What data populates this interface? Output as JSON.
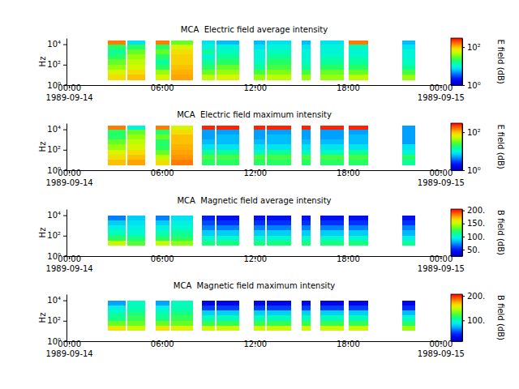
{
  "chart_data": [
    {
      "type": "heatmap",
      "title": "MCA  Electric field average intensity",
      "y_label": "Hz",
      "log": "y",
      "xlim": [
        "1989-09-13T23:50",
        "1989-09-15T00:05"
      ],
      "xticks": [
        {
          "value": "1989-09-14T00:00",
          "label": "00:00\n1989-09-14"
        },
        {
          "value": "1989-09-14T06:00",
          "label": "06:00"
        },
        {
          "value": "1989-09-14T12:00",
          "label": "12:00"
        },
        {
          "value": "1989-09-14T18:00",
          "label": "18:00"
        },
        {
          "value": "1989-09-15T00:00",
          "label": "00:00\n1989-09-15"
        }
      ],
      "ylim": [
        1,
        40000
      ],
      "yticks": [
        {
          "value": 1,
          "label": "10⁰"
        },
        {
          "value": 100,
          "label": "10²"
        },
        {
          "value": 10000,
          "label": "10⁴"
        }
      ],
      "y_bins": [
        3.16,
        10,
        31.6,
        100,
        316,
        1000,
        3160,
        10000,
        25000
      ],
      "colorbar": {
        "label": "E field (dB)",
        "log": true,
        "range": [
          1,
          300
        ],
        "ticks": [
          {
            "value": 1,
            "label": "10⁰"
          },
          {
            "value": 100,
            "label": "10²"
          }
        ]
      },
      "segments": [
        {
          "start": "1989-09-14T02:30",
          "end": "1989-09-14T03:40",
          "values": [
            80,
            60,
            40,
            30,
            20,
            15,
            20,
            150
          ]
        },
        {
          "start": "1989-09-14T03:45",
          "end": "1989-09-14T04:55",
          "values": [
            100,
            80,
            60,
            50,
            40,
            30,
            20,
            8
          ]
        },
        {
          "start": "1989-09-14T05:35",
          "end": "1989-09-14T06:30",
          "values": [
            60,
            40,
            20,
            15,
            20,
            30,
            20,
            150
          ]
        },
        {
          "start": "1989-09-14T06:35",
          "end": "1989-09-14T08:00",
          "values": [
            120,
            110,
            100,
            90,
            90,
            80,
            60,
            30
          ]
        },
        {
          "start": "1989-09-14T08:35",
          "end": "1989-09-14T09:25",
          "values": [
            50,
            30,
            20,
            15,
            10,
            15,
            10,
            8
          ]
        },
        {
          "start": "1989-09-14T09:30",
          "end": "1989-09-14T11:00",
          "values": [
            60,
            40,
            30,
            20,
            15,
            12,
            10,
            6
          ]
        },
        {
          "start": "1989-09-14T11:55",
          "end": "1989-09-14T12:40",
          "values": [
            40,
            25,
            15,
            12,
            10,
            10,
            8,
            6
          ]
        },
        {
          "start": "1989-09-14T12:45",
          "end": "1989-09-14T14:20",
          "values": [
            50,
            35,
            25,
            20,
            15,
            12,
            10,
            8
          ]
        },
        {
          "start": "1989-09-14T15:00",
          "end": "1989-09-14T15:35",
          "values": [
            40,
            25,
            15,
            12,
            10,
            10,
            8,
            6
          ]
        },
        {
          "start": "1989-09-14T16:15",
          "end": "1989-09-14T17:45",
          "values": [
            40,
            30,
            20,
            15,
            12,
            10,
            10,
            8
          ]
        },
        {
          "start": "1989-09-14T18:05",
          "end": "1989-09-14T19:20",
          "values": [
            50,
            30,
            20,
            15,
            12,
            10,
            12,
            150
          ]
        },
        {
          "start": "1989-09-14T21:30",
          "end": "1989-09-14T22:20",
          "values": [
            40,
            25,
            15,
            12,
            10,
            10,
            8,
            6
          ]
        }
      ]
    },
    {
      "type": "heatmap",
      "title": "MCA  Electric field maximum intensity",
      "y_label": "Hz",
      "log": "y",
      "xlim": [
        "1989-09-13T23:50",
        "1989-09-15T00:05"
      ],
      "xticks": [
        {
          "value": "1989-09-14T00:00",
          "label": "00:00\n1989-09-14"
        },
        {
          "value": "1989-09-14T06:00",
          "label": "06:00"
        },
        {
          "value": "1989-09-14T12:00",
          "label": "12:00"
        },
        {
          "value": "1989-09-14T18:00",
          "label": "18:00"
        },
        {
          "value": "1989-09-15T00:00",
          "label": "00:00\n1989-09-15"
        }
      ],
      "ylim": [
        1,
        40000
      ],
      "yticks": [
        {
          "value": 1,
          "label": "10⁰"
        },
        {
          "value": 100,
          "label": "10²"
        },
        {
          "value": 10000,
          "label": "10⁴"
        }
      ],
      "y_bins": [
        3.16,
        10,
        31.6,
        100,
        316,
        1000,
        3160,
        10000,
        25000
      ],
      "colorbar": {
        "label": "E field (dB)",
        "log": true,
        "range": [
          1,
          300
        ],
        "ticks": [
          {
            "value": 1,
            "label": "10⁰"
          },
          {
            "value": 100,
            "label": "10²"
          }
        ]
      },
      "segments": [
        {
          "start": "1989-09-14T02:30",
          "end": "1989-09-14T03:40",
          "values": [
            100,
            80,
            60,
            40,
            30,
            20,
            20,
            150
          ]
        },
        {
          "start": "1989-09-14T03:45",
          "end": "1989-09-14T04:55",
          "values": [
            120,
            100,
            80,
            60,
            50,
            40,
            30,
            10
          ]
        },
        {
          "start": "1989-09-14T05:35",
          "end": "1989-09-14T06:30",
          "values": [
            80,
            50,
            30,
            20,
            20,
            30,
            20,
            150
          ]
        },
        {
          "start": "1989-09-14T06:35",
          "end": "1989-09-14T08:00",
          "values": [
            150,
            130,
            120,
            110,
            100,
            100,
            80,
            60
          ]
        },
        {
          "start": "1989-09-14T08:35",
          "end": "1989-09-14T09:25",
          "values": [
            20,
            25,
            15,
            8,
            6,
            5,
            5,
            250
          ]
        },
        {
          "start": "1989-09-14T09:30",
          "end": "1989-09-14T11:00",
          "values": [
            20,
            25,
            15,
            8,
            6,
            6,
            5,
            250
          ]
        },
        {
          "start": "1989-09-14T11:55",
          "end": "1989-09-14T12:40",
          "values": [
            20,
            25,
            12,
            8,
            6,
            5,
            5,
            250
          ]
        },
        {
          "start": "1989-09-14T12:45",
          "end": "1989-09-14T14:20",
          "values": [
            20,
            25,
            15,
            8,
            6,
            6,
            5,
            250
          ]
        },
        {
          "start": "1989-09-14T15:00",
          "end": "1989-09-14T15:35",
          "values": [
            20,
            25,
            12,
            8,
            6,
            5,
            5,
            250
          ]
        },
        {
          "start": "1989-09-14T16:15",
          "end": "1989-09-14T17:45",
          "values": [
            20,
            25,
            12,
            8,
            6,
            5,
            5,
            250
          ]
        },
        {
          "start": "1989-09-14T18:05",
          "end": "1989-09-14T19:20",
          "values": [
            20,
            25,
            15,
            8,
            6,
            6,
            5,
            250
          ]
        },
        {
          "start": "1989-09-14T21:30",
          "end": "1989-09-14T22:20",
          "values": [
            15,
            20,
            10,
            8,
            5,
            5,
            5,
            5
          ]
        }
      ]
    },
    {
      "type": "heatmap",
      "title": "MCA  Magnetic field average intensity",
      "y_label": "Hz",
      "log": "y",
      "xlim": [
        "1989-09-13T23:50",
        "1989-09-15T00:05"
      ],
      "xticks": [
        {
          "value": "1989-09-14T00:00",
          "label": "00:00\n1989-09-14"
        },
        {
          "value": "1989-09-14T06:00",
          "label": "06:00"
        },
        {
          "value": "1989-09-14T12:00",
          "label": "12:00"
        },
        {
          "value": "1989-09-14T18:00",
          "label": "18:00"
        },
        {
          "value": "1989-09-15T00:00",
          "label": "00:00\n1989-09-15"
        }
      ],
      "ylim": [
        1,
        40000
      ],
      "yticks": [
        {
          "value": 1,
          "label": "10⁰"
        },
        {
          "value": 100,
          "label": "10²"
        },
        {
          "value": 10000,
          "label": "10⁴"
        }
      ],
      "y_bins": [
        10,
        31.6,
        100,
        316,
        1000,
        3160,
        10000
      ],
      "colorbar": {
        "label": "B field (dB)",
        "log": false,
        "range": [
          25,
          205
        ],
        "ticks": [
          {
            "value": 50,
            "label": "50."
          },
          {
            "value": 100,
            "label": "100."
          },
          {
            "value": 150,
            "label": "150."
          },
          {
            "value": 200,
            "label": "200."
          }
        ]
      },
      "segments": [
        {
          "start": "1989-09-14T02:30",
          "end": "1989-09-14T03:40",
          "values": [
            150,
            120,
            105,
            95,
            85,
            70
          ]
        },
        {
          "start": "1989-09-14T03:45",
          "end": "1989-09-14T04:55",
          "values": [
            130,
            115,
            100,
            95,
            90,
            85
          ]
        },
        {
          "start": "1989-09-14T05:35",
          "end": "1989-09-14T06:30",
          "values": [
            150,
            120,
            105,
            95,
            85,
            70
          ]
        },
        {
          "start": "1989-09-14T06:35",
          "end": "1989-09-14T08:00",
          "values": [
            140,
            120,
            110,
            100,
            95,
            90
          ]
        },
        {
          "start": "1989-09-14T08:35",
          "end": "1989-09-14T09:25",
          "values": [
            115,
            100,
            85,
            70,
            60,
            50
          ]
        },
        {
          "start": "1989-09-14T09:30",
          "end": "1989-09-14T11:00",
          "values": [
            115,
            100,
            85,
            70,
            55,
            45
          ]
        },
        {
          "start": "1989-09-14T11:55",
          "end": "1989-09-14T12:40",
          "values": [
            115,
            100,
            85,
            70,
            55,
            45
          ]
        },
        {
          "start": "1989-09-14T12:45",
          "end": "1989-09-14T14:20",
          "values": [
            115,
            100,
            85,
            70,
            55,
            45
          ]
        },
        {
          "start": "1989-09-14T15:00",
          "end": "1989-09-14T15:35",
          "values": [
            115,
            100,
            85,
            70,
            55,
            45
          ]
        },
        {
          "start": "1989-09-14T16:15",
          "end": "1989-09-14T17:45",
          "values": [
            115,
            100,
            85,
            70,
            55,
            45
          ]
        },
        {
          "start": "1989-09-14T18:05",
          "end": "1989-09-14T19:20",
          "values": [
            115,
            100,
            85,
            70,
            55,
            45
          ]
        },
        {
          "start": "1989-09-14T21:30",
          "end": "1989-09-14T22:20",
          "values": [
            110,
            95,
            80,
            70,
            55,
            45
          ]
        }
      ]
    },
    {
      "type": "heatmap",
      "title": "MCA  Magnetic field maximum intensity",
      "y_label": "Hz",
      "log": "y",
      "xlim": [
        "1989-09-13T23:50",
        "1989-09-15T00:05"
      ],
      "xticks": [
        {
          "value": "1989-09-14T00:00",
          "label": "00:00\n1989-09-14"
        },
        {
          "value": "1989-09-14T06:00",
          "label": "06:00"
        },
        {
          "value": "1989-09-14T12:00",
          "label": "12:00"
        },
        {
          "value": "1989-09-14T18:00",
          "label": "18:00"
        },
        {
          "value": "1989-09-15T00:00",
          "label": "00:00\n1989-09-15"
        }
      ],
      "ylim": [
        1,
        40000
      ],
      "yticks": [
        {
          "value": 1,
          "label": "10⁰"
        },
        {
          "value": 100,
          "label": "10²"
        },
        {
          "value": 10000,
          "label": "10⁴"
        }
      ],
      "y_bins": [
        10,
        31.6,
        100,
        316,
        1000,
        3160,
        10000
      ],
      "colorbar": {
        "label": "B field (dB)",
        "log": false,
        "range": [
          15,
          207
        ],
        "ticks": [
          {
            "value": 100,
            "label": "100."
          },
          {
            "value": 200,
            "label": "200."
          }
        ]
      },
      "segments": [
        {
          "start": "1989-09-14T02:30",
          "end": "1989-09-14T03:40",
          "values": [
            160,
            130,
            110,
            100,
            90,
            70
          ]
        },
        {
          "start": "1989-09-14T03:45",
          "end": "1989-09-14T04:55",
          "values": [
            150,
            130,
            120,
            110,
            100,
            100
          ]
        },
        {
          "start": "1989-09-14T05:35",
          "end": "1989-09-14T06:30",
          "values": [
            160,
            130,
            110,
            100,
            90,
            70
          ]
        },
        {
          "start": "1989-09-14T06:35",
          "end": "1989-09-14T08:00",
          "values": [
            155,
            130,
            120,
            110,
            100,
            100
          ]
        },
        {
          "start": "1989-09-14T08:35",
          "end": "1989-09-14T09:25",
          "values": [
            150,
            120,
            100,
            80,
            50,
            30
          ]
        },
        {
          "start": "1989-09-14T09:30",
          "end": "1989-09-14T11:00",
          "values": [
            150,
            120,
            100,
            80,
            50,
            30
          ]
        },
        {
          "start": "1989-09-14T11:55",
          "end": "1989-09-14T12:40",
          "values": [
            150,
            120,
            100,
            80,
            50,
            30
          ]
        },
        {
          "start": "1989-09-14T12:45",
          "end": "1989-09-14T14:20",
          "values": [
            150,
            120,
            100,
            80,
            50,
            30
          ]
        },
        {
          "start": "1989-09-14T15:00",
          "end": "1989-09-14T15:35",
          "values": [
            150,
            120,
            100,
            80,
            50,
            30
          ]
        },
        {
          "start": "1989-09-14T16:15",
          "end": "1989-09-14T17:45",
          "values": [
            150,
            120,
            100,
            80,
            50,
            30
          ]
        },
        {
          "start": "1989-09-14T18:05",
          "end": "1989-09-14T19:20",
          "values": [
            150,
            120,
            100,
            80,
            50,
            30
          ]
        },
        {
          "start": "1989-09-14T21:30",
          "end": "1989-09-14T22:20",
          "values": [
            140,
            115,
            95,
            75,
            45,
            30
          ]
        }
      ]
    }
  ]
}
